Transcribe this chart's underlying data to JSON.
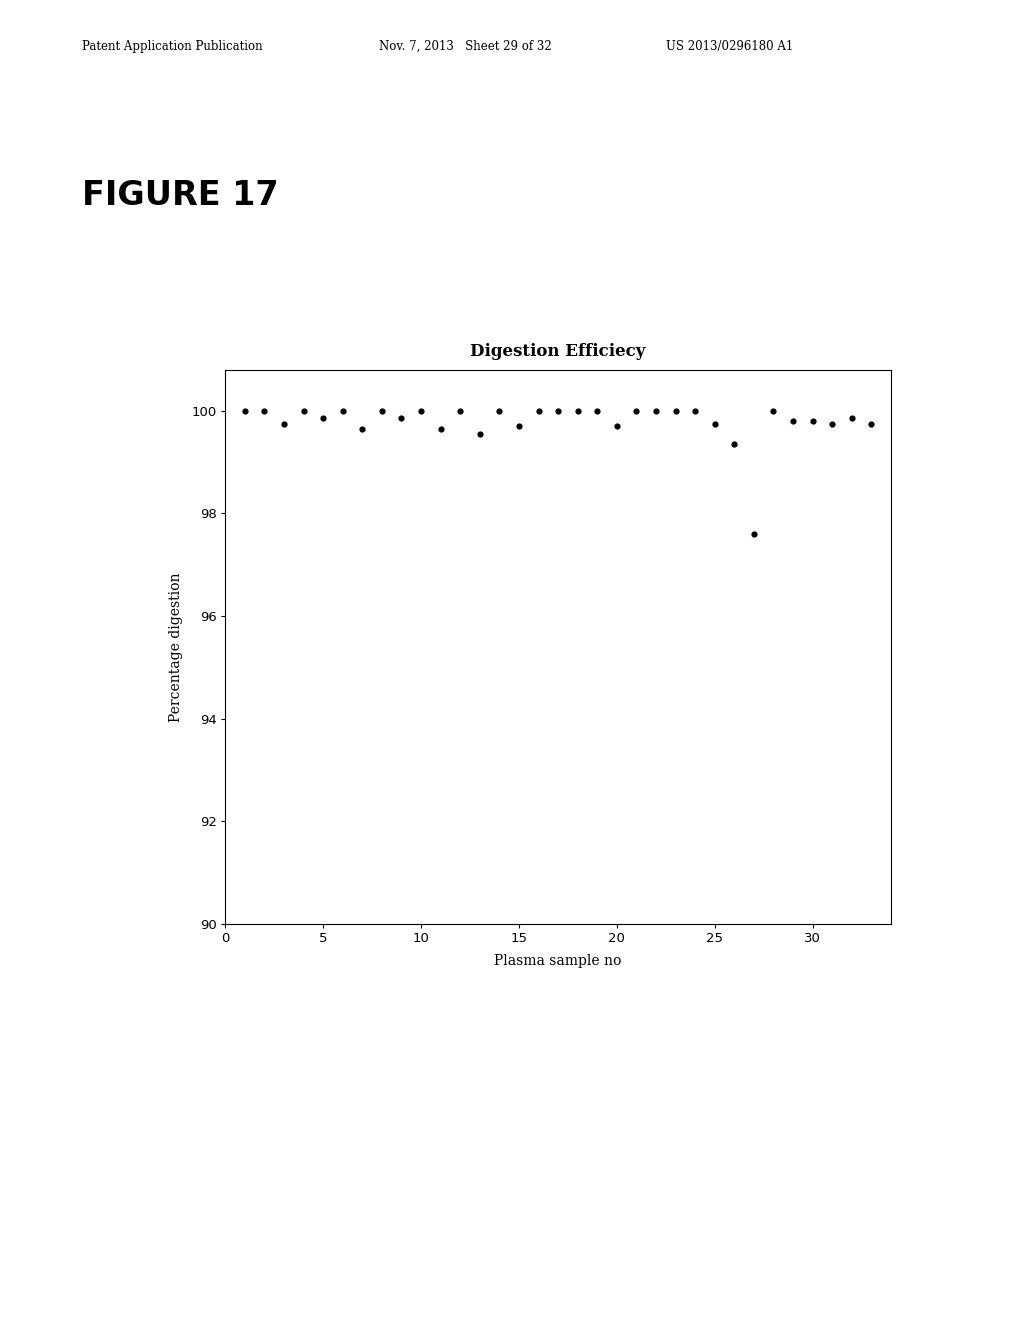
{
  "title": "Digestion Efficiecy",
  "xlabel": "Plasma sample no",
  "ylabel": "Percentage digestion",
  "xlim": [
    0,
    34
  ],
  "ylim": [
    90,
    100.8
  ],
  "yticks": [
    90,
    92,
    94,
    96,
    98,
    100
  ],
  "xticks": [
    0,
    5,
    10,
    15,
    20,
    25,
    30
  ],
  "x": [
    1,
    2,
    3,
    4,
    5,
    6,
    7,
    8,
    9,
    10,
    11,
    12,
    13,
    14,
    15,
    16,
    17,
    18,
    19,
    20,
    21,
    22,
    23,
    24,
    25,
    26,
    27,
    28,
    29,
    30,
    31,
    32,
    33
  ],
  "y": [
    100.0,
    100.0,
    99.75,
    100.0,
    99.85,
    100.0,
    99.65,
    100.0,
    99.85,
    100.0,
    99.65,
    100.0,
    99.55,
    100.0,
    99.7,
    100.0,
    100.0,
    100.0,
    100.0,
    99.7,
    100.0,
    100.0,
    100.0,
    100.0,
    99.75,
    99.35,
    97.6,
    100.0,
    99.8,
    99.8,
    99.75,
    99.85,
    99.75
  ],
  "background_color": "#ffffff",
  "dot_color": "#000000",
  "dot_size": 12,
  "figure_title": "FIGURE 17",
  "header_left": "Patent Application Publication",
  "header_center": "Nov. 7, 2013   Sheet 29 of 32",
  "header_right": "US 2013/0296180 A1"
}
